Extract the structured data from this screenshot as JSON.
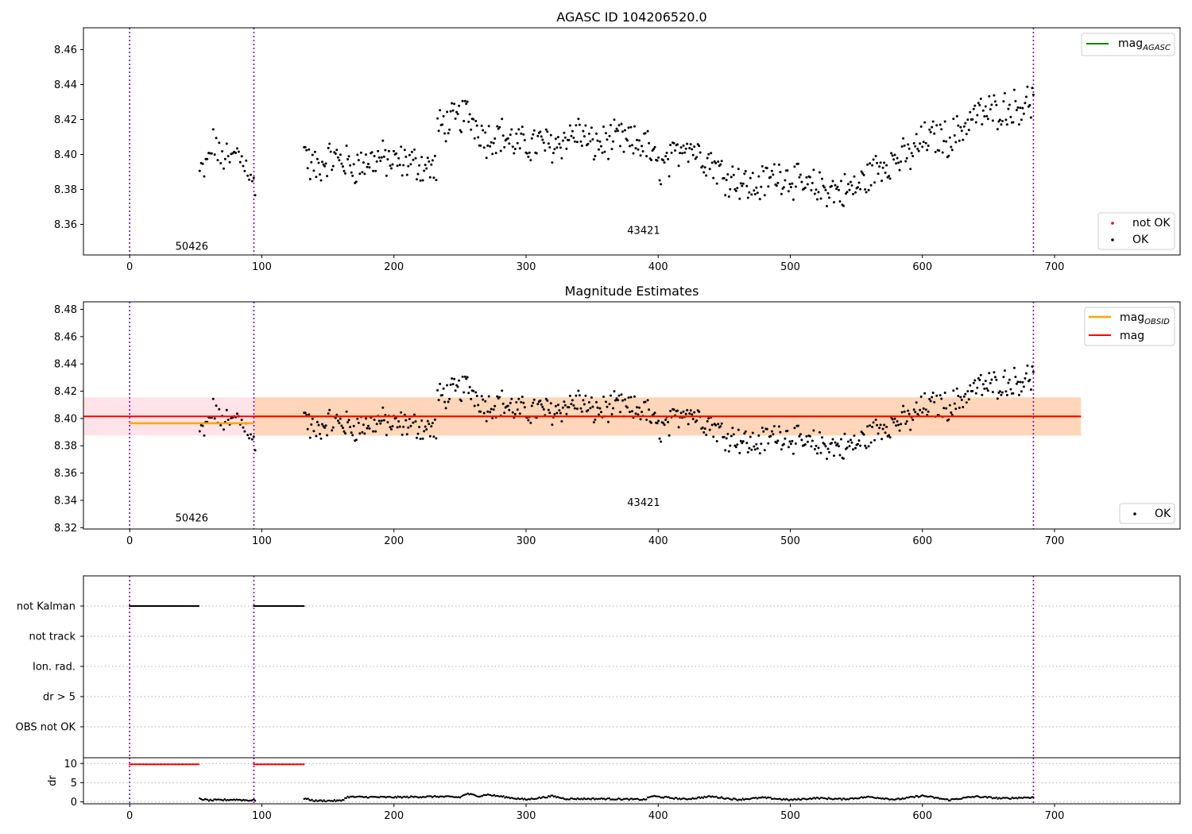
{
  "chart_data": [
    {
      "type": "scatter",
      "title": "AGASC ID 104206520.0",
      "xlim": [
        -35,
        795
      ],
      "ylim": [
        8.3425,
        8.4725
      ],
      "xticks": [
        0,
        100,
        200,
        300,
        400,
        500,
        600,
        700
      ],
      "yticks": [
        8.36,
        8.38,
        8.4,
        8.42,
        8.44,
        8.46
      ],
      "vlines": [
        0,
        94,
        684
      ],
      "obsid_labels": [
        {
          "text": "50426",
          "x": 47,
          "y": 8.3455
        },
        {
          "text": "43421",
          "x": 389,
          "y": 8.3545
        }
      ],
      "legend_top": [
        {
          "label": "mag",
          "subscript": "AGASC",
          "color": "#008000"
        }
      ],
      "legend_bottom": [
        {
          "label": "not OK",
          "color": "#ff0000"
        },
        {
          "label": "OK",
          "color": "#000000"
        }
      ],
      "series": [
        {
          "name": "OK",
          "color": "#000000",
          "segments": [
            {
              "x_start": 53,
              "x_end": 95,
              "n": 38,
              "points": [
                [
                  53,
                  8.389
                ],
                [
                  58,
                  8.392
                ],
                [
                  62,
                  8.404
                ],
                [
                  65,
                  8.408
                ],
                [
                  68,
                  8.396
                ],
                [
                  72,
                  8.4
                ],
                [
                  76,
                  8.394
                ],
                [
                  80,
                  8.402
                ],
                [
                  84,
                  8.398
                ],
                [
                  88,
                  8.397
                ],
                [
                  90,
                  8.391
                ],
                [
                  92,
                  8.381
                ],
                [
                  95,
                  8.385
                ]
              ]
            },
            {
              "x_start": 132,
              "x_end": 232,
              "n": 110,
              "points": [
                [
                  132,
                  8.405
                ],
                [
                  136,
                  8.394
                ],
                [
                  142,
                  8.392
                ],
                [
                  150,
                  8.398
                ],
                [
                  160,
                  8.397
                ],
                [
                  170,
                  8.393
                ],
                [
                  180,
                  8.396
                ],
                [
                  190,
                  8.398
                ],
                [
                  200,
                  8.395
                ],
                [
                  210,
                  8.396
                ],
                [
                  220,
                  8.394
                ],
                [
                  230,
                  8.392
                ]
              ]
            },
            {
              "x_start": 233,
              "x_end": 684,
              "n": 500,
              "points": [
                [
                  233,
                  8.415
                ],
                [
                  240,
                  8.418
                ],
                [
                  248,
                  8.42
                ],
                [
                  255,
                  8.424
                ],
                [
                  262,
                  8.417
                ],
                [
                  270,
                  8.409
                ],
                [
                  280,
                  8.412
                ],
                [
                  290,
                  8.407
                ],
                [
                  300,
                  8.405
                ],
                [
                  310,
                  8.407
                ],
                [
                  320,
                  8.405
                ],
                [
                  330,
                  8.409
                ],
                [
                  340,
                  8.413
                ],
                [
                  350,
                  8.405
                ],
                [
                  360,
                  8.407
                ],
                [
                  370,
                  8.409
                ],
                [
                  380,
                  8.406
                ],
                [
                  390,
                  8.407
                ],
                [
                  400,
                  8.392
                ],
                [
                  410,
                  8.396
                ],
                [
                  420,
                  8.408
                ],
                [
                  430,
                  8.401
                ],
                [
                  440,
                  8.396
                ],
                [
                  450,
                  8.388
                ],
                [
                  460,
                  8.386
                ],
                [
                  470,
                  8.381
                ],
                [
                  480,
                  8.384
                ],
                [
                  490,
                  8.389
                ],
                [
                  500,
                  8.387
                ],
                [
                  510,
                  8.381
                ],
                [
                  520,
                  8.381
                ],
                [
                  530,
                  8.38
                ],
                [
                  540,
                  8.379
                ],
                [
                  550,
                  8.381
                ],
                [
                  560,
                  8.388
                ],
                [
                  570,
                  8.395
                ],
                [
                  580,
                  8.397
                ],
                [
                  590,
                  8.399
                ],
                [
                  600,
                  8.408
                ],
                [
                  610,
                  8.41
                ],
                [
                  620,
                  8.409
                ],
                [
                  630,
                  8.415
                ],
                [
                  640,
                  8.423
                ],
                [
                  650,
                  8.424
                ],
                [
                  660,
                  8.426
                ],
                [
                  670,
                  8.427
                ],
                [
                  684,
                  8.431
                ]
              ]
            }
          ]
        }
      ]
    },
    {
      "type": "scatter",
      "title": "Magnitude Estimates",
      "xlim": [
        -35,
        795
      ],
      "ylim": [
        8.319,
        8.4855
      ],
      "xticks": [
        0,
        100,
        200,
        300,
        400,
        500,
        600,
        700
      ],
      "yticks": [
        8.32,
        8.34,
        8.36,
        8.38,
        8.4,
        8.42,
        8.44,
        8.46,
        8.48
      ],
      "vlines": [
        0,
        94,
        684
      ],
      "obsid_labels": [
        {
          "text": "50426",
          "x": 47,
          "y": 8.3245
        },
        {
          "text": "43421",
          "x": 389,
          "y": 8.336
        }
      ],
      "bands": [
        {
          "x": [
            -35,
            720
          ],
          "y": [
            8.3875,
            8.4155
          ],
          "color": "#ffc0cb",
          "opacity": 0.45
        },
        {
          "x": [
            94,
            720
          ],
          "y": [
            8.3875,
            8.4155
          ],
          "color": "#ffa500",
          "opacity": 0.2
        }
      ],
      "hlines": [
        {
          "name": "mag_OBSID",
          "x": [
            0,
            94
          ],
          "y": 8.3965,
          "color": "#ffa500"
        },
        {
          "name": "mag_OBSID",
          "x": [
            94,
            720
          ],
          "y": 8.4015,
          "color": "#ffa500"
        },
        {
          "name": "mag",
          "x": [
            -35,
            720
          ],
          "y": 8.4015,
          "color": "#ff0000"
        }
      ],
      "legend_top": [
        {
          "label": "mag",
          "subscript": "OBSID",
          "color": "#ffa500"
        },
        {
          "label": "mag",
          "color": "#ff0000"
        }
      ],
      "legend_bottom": [
        {
          "label": "OK",
          "color": "#000000"
        }
      ],
      "series": [
        {
          "name": "OK",
          "color": "#000000",
          "same_as_panel": 0
        }
      ]
    },
    {
      "type": "scatter",
      "title": "",
      "xlim": [
        -35,
        795
      ],
      "categories": [
        "not Kalman",
        "not track",
        "Ion. rad.",
        "dr > 5",
        "OBS not OK"
      ],
      "vlines": [
        0,
        94,
        684
      ],
      "flags": [
        {
          "category": "not Kalman",
          "ranges": [
            [
              0,
              53
            ],
            [
              94,
              132
            ]
          ],
          "color": "#000000"
        }
      ]
    },
    {
      "type": "scatter",
      "title": "",
      "xlim": [
        -35,
        795
      ],
      "ylim": [
        -0.5,
        11.5
      ],
      "xticks": [
        0,
        100,
        200,
        300,
        400,
        500,
        600,
        700
      ],
      "yticks": [
        0,
        5,
        10
      ],
      "ylabel": "dr",
      "vlines": [
        0,
        94,
        684
      ],
      "series": [
        {
          "name": "dr capped",
          "color": "#ff0000",
          "ranges": [
            [
              0,
              53
            ],
            [
              94,
              132
            ]
          ],
          "value": 9.8
        },
        {
          "name": "dr",
          "color": "#000000",
          "points": [
            [
              53,
              0.8
            ],
            [
              60,
              0.4
            ],
            [
              70,
              0.5
            ],
            [
              80,
              0.6
            ],
            [
              90,
              0.4
            ],
            [
              132,
              0.9
            ],
            [
              140,
              0.3
            ],
            [
              160,
              0.3
            ],
            [
              165,
              1.3
            ],
            [
              200,
              1.2
            ],
            [
              233,
              1.4
            ],
            [
              250,
              1.2
            ],
            [
              255,
              2.1
            ],
            [
              265,
              1.5
            ],
            [
              270,
              1.9
            ],
            [
              290,
              1.0
            ],
            [
              300,
              0.6
            ],
            [
              320,
              1.5
            ],
            [
              330,
              0.8
            ],
            [
              360,
              0.8
            ],
            [
              390,
              0.6
            ],
            [
              395,
              1.5
            ],
            [
              420,
              0.7
            ],
            [
              440,
              1.4
            ],
            [
              460,
              0.6
            ],
            [
              480,
              1.1
            ],
            [
              500,
              0.5
            ],
            [
              520,
              1.0
            ],
            [
              540,
              0.7
            ],
            [
              560,
              1.3
            ],
            [
              580,
              0.6
            ],
            [
              600,
              1.6
            ],
            [
              620,
              0.5
            ],
            [
              640,
              1.4
            ],
            [
              660,
              0.9
            ],
            [
              684,
              1.2
            ]
          ]
        }
      ]
    }
  ]
}
